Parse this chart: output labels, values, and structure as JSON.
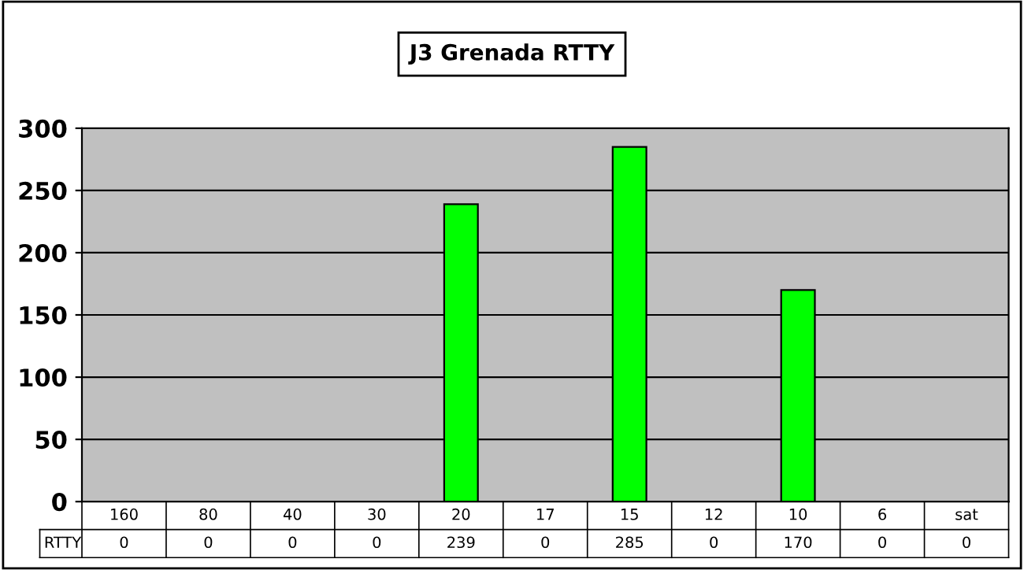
{
  "chart_data": {
    "type": "bar",
    "title": "J3 Grenada RTTY",
    "categories": [
      "160",
      "80",
      "40",
      "30",
      "20",
      "17",
      "15",
      "12",
      "10",
      "6",
      "sat"
    ],
    "series": [
      {
        "name": "RTTY",
        "color": "#00ff00",
        "values": [
          0,
          0,
          0,
          0,
          239,
          0,
          285,
          0,
          170,
          0,
          0
        ]
      }
    ],
    "ylim": [
      0,
      300
    ],
    "yticks": [
      0,
      50,
      100,
      150,
      200,
      250,
      300
    ],
    "grid": "y",
    "data_labels": true,
    "legend": "bottom left"
  }
}
